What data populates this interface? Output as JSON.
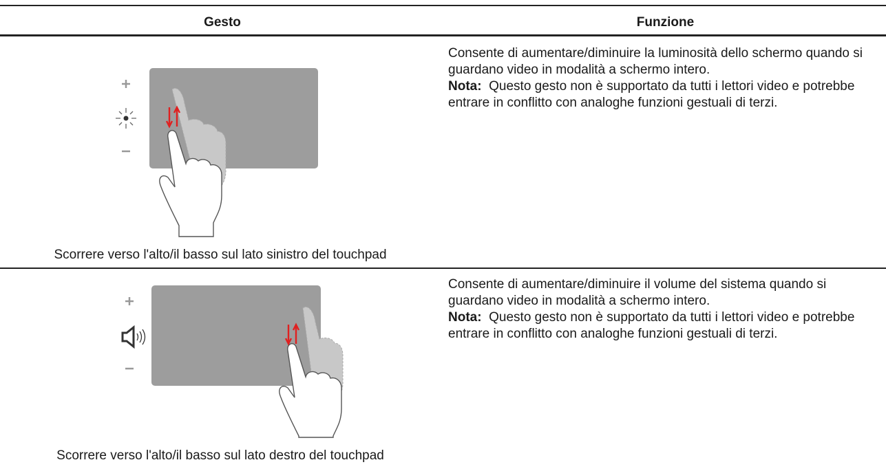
{
  "table": {
    "header": [
      "Gesto",
      "Funzione"
    ],
    "rows": [
      {
        "gesture": "Scorrere verso l'alto/il basso sul lato sinistro del touchpad",
        "function": "Consente di aumentare/diminuire la luminosità dello schermo quando si guardano video in modalità a schermo intero.",
        "note_label": "Nota:",
        "note": "Questo gesto non è supportato da tutti i lettori video e potrebbe entrare in conflitto con analoghe funzioni gestuali di terzi."
      },
      {
        "gesture": "Scorrere verso l'alto/il basso sul lato destro del touchpad",
        "function": "Consente di aumentare/diminuire il volume del sistema quando si guardano video in modalità a schermo intero.",
        "note_label": "Nota:",
        "note": "Questo gesto non è supportato da tutti i lettori video e potrebbe entrare in conflitto con analoghe funzioni gestuali di terzi."
      }
    ]
  }
}
